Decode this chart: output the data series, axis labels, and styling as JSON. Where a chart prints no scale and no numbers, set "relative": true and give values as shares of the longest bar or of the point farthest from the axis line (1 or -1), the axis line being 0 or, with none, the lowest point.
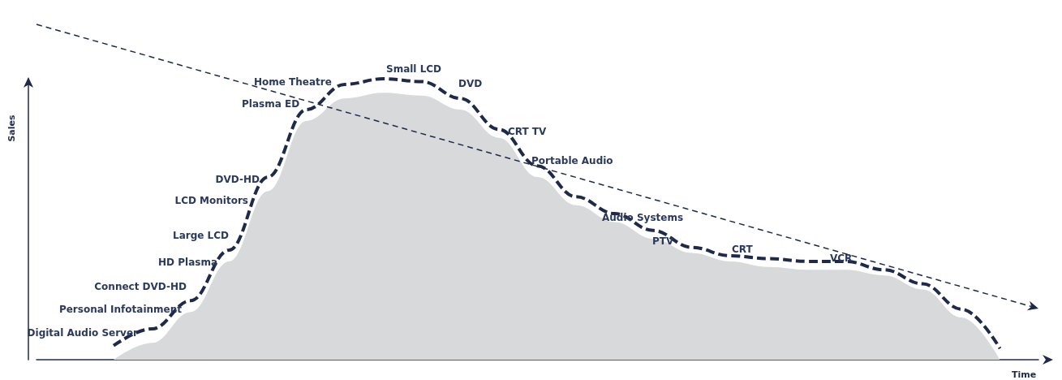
{
  "chart_data": {
    "type": "line",
    "relative": true,
    "xlabel": "Time",
    "ylabel": "Sales",
    "categories": [
      null,
      null,
      null,
      null,
      null,
      null,
      null,
      null,
      null,
      null,
      null,
      null,
      null,
      null,
      null,
      null,
      null,
      null,
      null,
      null,
      null,
      null,
      null,
      null,
      null,
      null,
      null
    ],
    "series": [
      {
        "type": "area",
        "color": "#d8d9db",
        "values": [
          null,
          null,
          0,
          0.06,
          0.17,
          0.35,
          0.6,
          0.85,
          0.93,
          0.95,
          0.94,
          0.89,
          0.79,
          0.65,
          0.55,
          0.49,
          0.43,
          0.38,
          0.35,
          0.33,
          0.32,
          0.32,
          0.3,
          0.25,
          0.15,
          0,
          null
        ]
      },
      {
        "type": "line",
        "color": "#1e2a4a",
        "line_style": "dashed",
        "values": [
          null,
          null,
          0.05,
          0.11,
          0.21,
          0.39,
          0.65,
          0.89,
          0.98,
          1,
          0.99,
          0.93,
          0.82,
          0.69,
          0.58,
          0.52,
          0.46,
          0.4,
          0.37,
          0.36,
          0.35,
          0.35,
          0.32,
          0.27,
          0.18,
          0.04,
          null
        ]
      }
    ],
    "annotations": [
      "Digital Audio Server",
      "Personal Infotainment",
      "Connect DVD-HD",
      "HD Plasma",
      "Large LCD",
      "LCD Monitors",
      "DVD-HD",
      "Plasma ED",
      "Home Theatre",
      "Small LCD",
      "DVD",
      "CRT TV",
      "Portable Audio",
      "Audio Systems",
      "PTV",
      "CRT",
      "VCR"
    ]
  }
}
